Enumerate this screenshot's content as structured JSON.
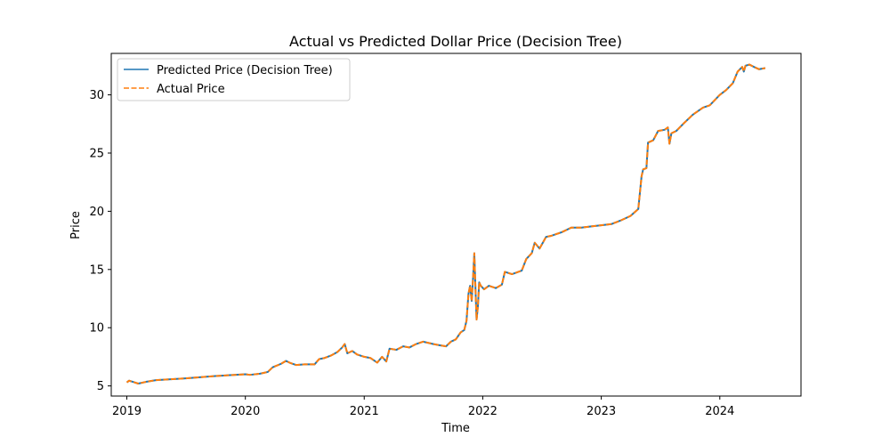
{
  "chart_data": {
    "type": "line",
    "title": "Actual vs Predicted Dollar Price (Decision Tree)",
    "xlabel": "Time",
    "ylabel": "Price",
    "xlim": [
      "2018-11-14",
      "2024-09-07"
    ],
    "ylim": [
      4.13,
      33.56
    ],
    "x_ticks": [
      "2019",
      "2020",
      "2021",
      "2022",
      "2023",
      "2024"
    ],
    "y_ticks": [
      5,
      10,
      15,
      20,
      25,
      30
    ],
    "grid": false,
    "legend_position": "upper-left",
    "series": [
      {
        "name": "Predicted Price (Decision Tree)",
        "color": "#1f77b4",
        "style": "solid",
        "points": [
          [
            "2019-01-01",
            5.3
          ],
          [
            "2019-01-08",
            5.45
          ],
          [
            "2019-01-20",
            5.35
          ],
          [
            "2019-02-05",
            5.2
          ],
          [
            "2019-03-01",
            5.35
          ],
          [
            "2019-04-01",
            5.5
          ],
          [
            "2019-07-01",
            5.65
          ],
          [
            "2019-10-01",
            5.85
          ],
          [
            "2020-01-01",
            6.0
          ],
          [
            "2020-01-15",
            5.95
          ],
          [
            "2020-02-15",
            6.05
          ],
          [
            "2020-03-10",
            6.2
          ],
          [
            "2020-03-25",
            6.6
          ],
          [
            "2020-04-20",
            6.9
          ],
          [
            "2020-05-05",
            7.15
          ],
          [
            "2020-05-20",
            6.95
          ],
          [
            "2020-06-05",
            6.8
          ],
          [
            "2020-07-01",
            6.85
          ],
          [
            "2020-08-01",
            6.85
          ],
          [
            "2020-08-15",
            7.3
          ],
          [
            "2020-09-01",
            7.4
          ],
          [
            "2020-09-20",
            7.6
          ],
          [
            "2020-10-10",
            7.9
          ],
          [
            "2020-10-25",
            8.3
          ],
          [
            "2020-11-02",
            8.6
          ],
          [
            "2020-11-10",
            7.8
          ],
          [
            "2020-11-25",
            8.0
          ],
          [
            "2020-12-10",
            7.7
          ],
          [
            "2021-01-01",
            7.5
          ],
          [
            "2021-01-20",
            7.4
          ],
          [
            "2021-02-10",
            7.0
          ],
          [
            "2021-02-25",
            7.5
          ],
          [
            "2021-03-10",
            7.1
          ],
          [
            "2021-03-20",
            8.2
          ],
          [
            "2021-04-10",
            8.1
          ],
          [
            "2021-05-01",
            8.4
          ],
          [
            "2021-05-20",
            8.3
          ],
          [
            "2021-06-10",
            8.6
          ],
          [
            "2021-07-01",
            8.8
          ],
          [
            "2021-08-01",
            8.6
          ],
          [
            "2021-08-20",
            8.5
          ],
          [
            "2021-09-10",
            8.4
          ],
          [
            "2021-09-25",
            8.8
          ],
          [
            "2021-10-10",
            9.0
          ],
          [
            "2021-10-25",
            9.6
          ],
          [
            "2021-11-05",
            9.8
          ],
          [
            "2021-11-12",
            10.6
          ],
          [
            "2021-11-18",
            12.9
          ],
          [
            "2021-11-23",
            13.6
          ],
          [
            "2021-11-28",
            12.3
          ],
          [
            "2021-12-02",
            14.2
          ],
          [
            "2021-12-06",
            16.4
          ],
          [
            "2021-12-10",
            13.0
          ],
          [
            "2021-12-13",
            10.7
          ],
          [
            "2021-12-17",
            11.8
          ],
          [
            "2021-12-21",
            13.9
          ],
          [
            "2021-12-26",
            13.6
          ],
          [
            "2022-01-05",
            13.3
          ],
          [
            "2022-01-20",
            13.6
          ],
          [
            "2022-02-10",
            13.4
          ],
          [
            "2022-03-01",
            13.7
          ],
          [
            "2022-03-10",
            14.8
          ],
          [
            "2022-04-01",
            14.6
          ],
          [
            "2022-05-01",
            14.9
          ],
          [
            "2022-05-15",
            15.9
          ],
          [
            "2022-06-01",
            16.4
          ],
          [
            "2022-06-10",
            17.3
          ],
          [
            "2022-06-25",
            16.8
          ],
          [
            "2022-07-15",
            17.8
          ],
          [
            "2022-08-01",
            17.9
          ],
          [
            "2022-09-01",
            18.2
          ],
          [
            "2022-10-01",
            18.6
          ],
          [
            "2022-11-01",
            18.6
          ],
          [
            "2022-12-01",
            18.7
          ],
          [
            "2023-01-01",
            18.8
          ],
          [
            "2023-02-01",
            18.9
          ],
          [
            "2023-03-01",
            19.2
          ],
          [
            "2023-04-01",
            19.6
          ],
          [
            "2023-04-25",
            20.2
          ],
          [
            "2023-05-05",
            23.0
          ],
          [
            "2023-05-10",
            23.6
          ],
          [
            "2023-05-20",
            23.7
          ],
          [
            "2023-05-25",
            25.9
          ],
          [
            "2023-06-10",
            26.1
          ],
          [
            "2023-06-25",
            26.9
          ],
          [
            "2023-07-15",
            27.0
          ],
          [
            "2023-07-25",
            27.2
          ],
          [
            "2023-07-30",
            25.8
          ],
          [
            "2023-08-05",
            26.7
          ],
          [
            "2023-08-20",
            26.9
          ],
          [
            "2023-09-10",
            27.5
          ],
          [
            "2023-10-10",
            28.3
          ],
          [
            "2023-11-10",
            28.9
          ],
          [
            "2023-12-01",
            29.1
          ],
          [
            "2024-01-01",
            30.0
          ],
          [
            "2024-01-20",
            30.4
          ],
          [
            "2024-02-10",
            31.0
          ],
          [
            "2024-02-25",
            32.0
          ],
          [
            "2024-03-10",
            32.4
          ],
          [
            "2024-03-15",
            32.0
          ],
          [
            "2024-03-20",
            32.5
          ],
          [
            "2024-04-01",
            32.6
          ],
          [
            "2024-04-15",
            32.4
          ],
          [
            "2024-05-01",
            32.2
          ],
          [
            "2024-05-20",
            32.3
          ]
        ]
      },
      {
        "name": "Actual Price",
        "color": "#ff7f0e",
        "style": "dashed",
        "points": [
          [
            "2019-01-01",
            5.3
          ],
          [
            "2019-01-08",
            5.45
          ],
          [
            "2019-01-20",
            5.35
          ],
          [
            "2019-02-05",
            5.2
          ],
          [
            "2019-03-01",
            5.35
          ],
          [
            "2019-04-01",
            5.5
          ],
          [
            "2019-07-01",
            5.65
          ],
          [
            "2019-10-01",
            5.85
          ],
          [
            "2020-01-01",
            6.0
          ],
          [
            "2020-01-15",
            5.95
          ],
          [
            "2020-02-15",
            6.05
          ],
          [
            "2020-03-10",
            6.2
          ],
          [
            "2020-03-25",
            6.6
          ],
          [
            "2020-04-20",
            6.9
          ],
          [
            "2020-05-05",
            7.15
          ],
          [
            "2020-05-20",
            6.95
          ],
          [
            "2020-06-05",
            6.8
          ],
          [
            "2020-07-01",
            6.85
          ],
          [
            "2020-08-01",
            6.85
          ],
          [
            "2020-08-15",
            7.3
          ],
          [
            "2020-09-01",
            7.4
          ],
          [
            "2020-09-20",
            7.6
          ],
          [
            "2020-10-10",
            7.9
          ],
          [
            "2020-10-25",
            8.3
          ],
          [
            "2020-11-02",
            8.6
          ],
          [
            "2020-11-10",
            7.8
          ],
          [
            "2020-11-25",
            8.0
          ],
          [
            "2020-12-10",
            7.7
          ],
          [
            "2021-01-01",
            7.5
          ],
          [
            "2021-01-20",
            7.4
          ],
          [
            "2021-02-10",
            7.0
          ],
          [
            "2021-02-25",
            7.5
          ],
          [
            "2021-03-10",
            7.1
          ],
          [
            "2021-03-20",
            8.2
          ],
          [
            "2021-04-10",
            8.1
          ],
          [
            "2021-05-01",
            8.4
          ],
          [
            "2021-05-20",
            8.3
          ],
          [
            "2021-06-10",
            8.6
          ],
          [
            "2021-07-01",
            8.8
          ],
          [
            "2021-08-01",
            8.6
          ],
          [
            "2021-08-20",
            8.5
          ],
          [
            "2021-09-10",
            8.4
          ],
          [
            "2021-09-25",
            8.8
          ],
          [
            "2021-10-10",
            9.0
          ],
          [
            "2021-10-25",
            9.6
          ],
          [
            "2021-11-05",
            9.8
          ],
          [
            "2021-11-12",
            10.6
          ],
          [
            "2021-11-18",
            12.9
          ],
          [
            "2021-11-23",
            13.6
          ],
          [
            "2021-11-28",
            12.3
          ],
          [
            "2021-12-02",
            14.2
          ],
          [
            "2021-12-06",
            16.4
          ],
          [
            "2021-12-10",
            13.0
          ],
          [
            "2021-12-13",
            10.7
          ],
          [
            "2021-12-17",
            11.8
          ],
          [
            "2021-12-21",
            13.9
          ],
          [
            "2021-12-26",
            13.6
          ],
          [
            "2022-01-05",
            13.3
          ],
          [
            "2022-01-20",
            13.6
          ],
          [
            "2022-02-10",
            13.4
          ],
          [
            "2022-03-01",
            13.7
          ],
          [
            "2022-03-10",
            14.8
          ],
          [
            "2022-04-01",
            14.6
          ],
          [
            "2022-05-01",
            14.9
          ],
          [
            "2022-05-15",
            15.9
          ],
          [
            "2022-06-01",
            16.4
          ],
          [
            "2022-06-10",
            17.3
          ],
          [
            "2022-06-25",
            16.8
          ],
          [
            "2022-07-15",
            17.8
          ],
          [
            "2022-08-01",
            17.9
          ],
          [
            "2022-09-01",
            18.2
          ],
          [
            "2022-10-01",
            18.6
          ],
          [
            "2022-11-01",
            18.6
          ],
          [
            "2022-12-01",
            18.7
          ],
          [
            "2023-01-01",
            18.8
          ],
          [
            "2023-02-01",
            18.9
          ],
          [
            "2023-03-01",
            19.2
          ],
          [
            "2023-04-01",
            19.6
          ],
          [
            "2023-04-25",
            20.2
          ],
          [
            "2023-05-05",
            23.0
          ],
          [
            "2023-05-10",
            23.6
          ],
          [
            "2023-05-20",
            23.7
          ],
          [
            "2023-05-25",
            25.9
          ],
          [
            "2023-06-10",
            26.1
          ],
          [
            "2023-06-25",
            26.9
          ],
          [
            "2023-07-15",
            27.0
          ],
          [
            "2023-07-25",
            27.2
          ],
          [
            "2023-07-30",
            25.8
          ],
          [
            "2023-08-05",
            26.7
          ],
          [
            "2023-08-20",
            26.9
          ],
          [
            "2023-09-10",
            27.5
          ],
          [
            "2023-10-10",
            28.3
          ],
          [
            "2023-11-10",
            28.9
          ],
          [
            "2023-12-01",
            29.1
          ],
          [
            "2024-01-01",
            30.0
          ],
          [
            "2024-01-20",
            30.4
          ],
          [
            "2024-02-10",
            31.0
          ],
          [
            "2024-02-25",
            32.0
          ],
          [
            "2024-03-10",
            32.4
          ],
          [
            "2024-03-15",
            32.0
          ],
          [
            "2024-03-20",
            32.5
          ],
          [
            "2024-04-01",
            32.6
          ],
          [
            "2024-04-15",
            32.4
          ],
          [
            "2024-05-01",
            32.2
          ],
          [
            "2024-05-20",
            32.3
          ]
        ]
      }
    ]
  }
}
